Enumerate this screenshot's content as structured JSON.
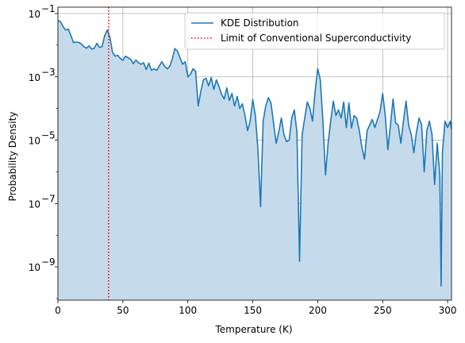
{
  "chart_data": {
    "type": "area",
    "title": "",
    "xlabel": "Temperature (K)",
    "ylabel": "Probability Density",
    "xlim": [
      0,
      303
    ],
    "ylim_log10": [
      -10.05,
      -0.8
    ],
    "yscale": "log",
    "grid": true,
    "legend_position": "top-right",
    "x_ticks": [
      {
        "value": 0,
        "label": "0"
      },
      {
        "value": 50,
        "label": "50"
      },
      {
        "value": 100,
        "label": "100"
      },
      {
        "value": 150,
        "label": "150"
      },
      {
        "value": 200,
        "label": "200"
      },
      {
        "value": 250,
        "label": "250"
      },
      {
        "value": 300,
        "label": "300"
      }
    ],
    "y_ticks": [
      {
        "exp": -1,
        "base": "10",
        "sup": "−1"
      },
      {
        "exp": -3,
        "base": "10",
        "sup": "−3"
      },
      {
        "exp": -5,
        "base": "10",
        "sup": "−5"
      },
      {
        "exp": -7,
        "base": "10",
        "sup": "−7"
      },
      {
        "exp": -9,
        "base": "10",
        "sup": "−9"
      }
    ],
    "series": [
      {
        "name": "KDE Distribution",
        "color": "#1f77b4",
        "fill_color": "#c5dbec",
        "x": [
          0,
          2,
          4,
          6,
          8,
          10,
          12,
          14,
          16,
          18,
          20,
          22,
          24,
          26,
          28,
          30,
          32,
          34,
          36,
          38,
          40,
          42,
          44,
          46,
          48,
          50,
          52,
          54,
          56,
          58,
          60,
          62,
          64,
          66,
          68,
          70,
          72,
          74,
          76,
          78,
          80,
          82,
          84,
          86,
          88,
          90,
          92,
          94,
          96,
          98,
          100,
          102,
          104,
          106,
          108,
          110,
          112,
          114,
          116,
          118,
          120,
          122,
          124,
          126,
          128,
          130,
          132,
          134,
          136,
          138,
          140,
          142,
          144,
          146,
          148,
          150,
          152,
          154,
          156,
          158,
          160,
          162,
          164,
          166,
          168,
          170,
          172,
          174,
          176,
          178,
          180,
          182,
          184,
          186,
          188,
          190,
          192,
          194,
          196,
          198,
          200,
          202,
          204,
          206,
          208,
          210,
          212,
          214,
          216,
          218,
          220,
          222,
          224,
          226,
          228,
          230,
          232,
          234,
          236,
          238,
          240,
          242,
          244,
          246,
          248,
          250,
          252,
          254,
          256,
          258,
          260,
          262,
          264,
          266,
          268,
          270,
          272,
          274,
          276,
          278,
          280,
          282,
          284,
          286,
          288,
          290,
          292,
          294,
          295,
          296,
          298,
          300,
          302,
          303
        ],
        "y": [
          0.06,
          0.055,
          0.038,
          0.03,
          0.032,
          0.02,
          0.012,
          0.0125,
          0.0122,
          0.011,
          0.009,
          0.008,
          0.0095,
          0.0075,
          0.008,
          0.0115,
          0.0085,
          0.009,
          0.02,
          0.03,
          0.018,
          0.006,
          0.0045,
          0.0048,
          0.0038,
          0.0033,
          0.0045,
          0.004,
          0.0036,
          0.0026,
          0.0034,
          0.0028,
          0.0025,
          0.0028,
          0.0017,
          0.0027,
          0.0016,
          0.0018,
          0.0016,
          0.0022,
          0.003,
          0.0022,
          0.0018,
          0.0021,
          0.0036,
          0.0078,
          0.0065,
          0.004,
          0.0025,
          0.003,
          0.001,
          0.0012,
          0.0018,
          0.0015,
          0.00012,
          0.00035,
          0.0008,
          0.0009,
          0.00052,
          0.00095,
          0.0004,
          0.0008,
          0.0005,
          0.00028,
          0.0002,
          0.00045,
          0.00018,
          0.0003,
          0.00012,
          0.00024,
          0.0001,
          0.00014,
          6e-05,
          2e-05,
          4e-05,
          0.00019,
          6e-05,
          5e-06,
          8e-08,
          4e-05,
          0.00012,
          0.00022,
          0.00015,
          3.5e-05,
          8e-06,
          1.8e-05,
          5e-05,
          1.5e-05,
          9e-06,
          1e-05,
          5e-05,
          9e-05,
          1.8e-05,
          1.5e-09,
          1.5e-05,
          5e-05,
          0.00016,
          0.0001,
          4e-05,
          0.00035,
          0.0018,
          0.0008,
          4e-05,
          8e-07,
          8e-06,
          4e-05,
          0.00017,
          6e-05,
          9e-05,
          5e-05,
          0.00016,
          2.5e-05,
          0.00015,
          2.4e-05,
          6e-05,
          5e-05,
          2e-05,
          6e-06,
          2.5e-06,
          2e-05,
          3e-05,
          4.5e-05,
          2.5e-05,
          4.5e-05,
          8e-05,
          0.0003,
          6e-05,
          5e-06,
          3e-05,
          0.0002,
          3.5e-05,
          3e-05,
          8e-06,
          4e-05,
          0.00017,
          3e-05,
          1.5e-05,
          4e-06,
          1.8e-05,
          5e-05,
          3e-05,
          1e-06,
          2e-05,
          4e-05,
          1.5e-05,
          4e-07,
          8e-06,
          8e-07,
          2.5e-10,
          4e-06,
          4e-05,
          2.5e-05,
          4e-05,
          2.2e-05
        ]
      },
      {
        "name": "Limit of Conventional Superconductivity",
        "color": "#ff0000",
        "x_value": 39
      }
    ]
  }
}
